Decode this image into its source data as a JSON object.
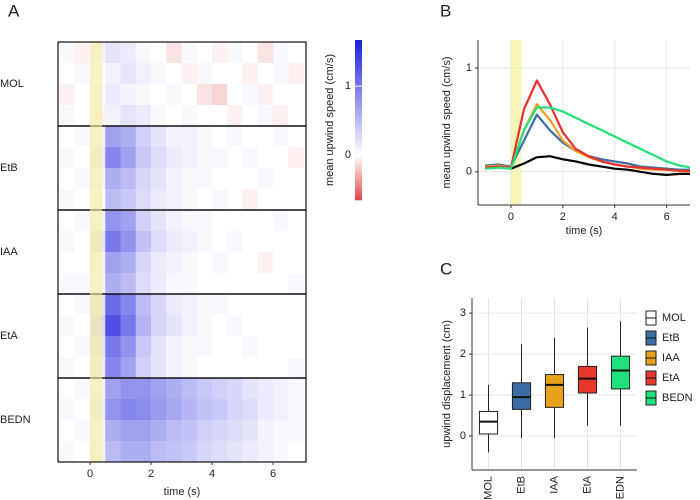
{
  "chart_data": [
    {
      "type": "heatmap",
      "label": "A",
      "xlabel": "time (s)",
      "colorbar_label": "mean upwind speed (cm/s)",
      "xlim": [
        -1.05,
        7.08
      ],
      "xticks": [
        0,
        2,
        4,
        6
      ],
      "highlight": [
        0,
        0.4
      ],
      "clim": [
        -0.65,
        1.67
      ],
      "cticks": [
        0,
        1
      ],
      "xbins": [
        -1,
        -0.5,
        0,
        0.5,
        1,
        1.5,
        2,
        2.5,
        3,
        3.5,
        4,
        4.5,
        5,
        5.5,
        6,
        6.5,
        7
      ],
      "groups": [
        {
          "name": "MOL",
          "rows": [
            [
              0.05,
              -0.05,
              0.1,
              0.2,
              0.15,
              0.05,
              0,
              -0.1,
              0.05,
              0,
              -0.05,
              0.05,
              0,
              -0.1,
              0.05,
              0
            ],
            [
              0,
              0.05,
              0,
              0.1,
              0.2,
              0.1,
              0.05,
              0,
              -0.05,
              0.05,
              0,
              0,
              -0.05,
              0,
              0.05,
              -0.05
            ],
            [
              -0.05,
              0,
              0.05,
              0.15,
              0.1,
              0.05,
              0,
              0.05,
              0,
              -0.1,
              -0.15,
              0,
              0.05,
              -0.05,
              0,
              0
            ],
            [
              0.05,
              0,
              -0.05,
              0.1,
              0.2,
              0.15,
              0.05,
              0,
              0.05,
              0,
              0,
              -0.05,
              0,
              0.05,
              -0.05,
              0
            ]
          ]
        },
        {
          "name": "EtB",
          "rows": [
            [
              0,
              0.05,
              0.1,
              0.7,
              0.6,
              0.35,
              0.2,
              0.1,
              0.1,
              0.05,
              0,
              0.05,
              0,
              0,
              0.05,
              0
            ],
            [
              0.05,
              0,
              0.15,
              0.9,
              0.7,
              0.4,
              0.25,
              0.15,
              0.1,
              0.05,
              0.05,
              0,
              0.05,
              0,
              0,
              -0.05
            ],
            [
              0,
              0.05,
              0.1,
              0.6,
              0.5,
              0.3,
              0.2,
              0.1,
              0.05,
              0.05,
              0,
              0,
              0,
              0.05,
              0,
              0
            ],
            [
              0.05,
              0,
              0.05,
              0.5,
              0.4,
              0.25,
              0.15,
              0.1,
              0.05,
              0,
              0.05,
              0,
              -0.05,
              0,
              0,
              0
            ]
          ]
        },
        {
          "name": "IAA",
          "rows": [
            [
              0,
              0.05,
              0.1,
              0.8,
              0.7,
              0.35,
              0.2,
              0.1,
              0.05,
              0.05,
              0,
              0,
              0,
              0,
              0.05,
              0
            ],
            [
              0.05,
              0,
              0.2,
              1.0,
              0.8,
              0.45,
              0.25,
              0.15,
              0.1,
              0.05,
              0,
              0.05,
              0,
              0,
              0,
              0
            ],
            [
              0,
              0,
              0.1,
              0.7,
              0.6,
              0.3,
              0.15,
              0.1,
              0.05,
              0,
              0.05,
              0,
              0,
              -0.05,
              0,
              0
            ],
            [
              0.05,
              0.05,
              0.1,
              0.6,
              0.5,
              0.25,
              0.15,
              0.05,
              0.05,
              0,
              0,
              0,
              0,
              0,
              0,
              0.05
            ]
          ]
        },
        {
          "name": "EtA",
          "rows": [
            [
              0,
              0.05,
              0.2,
              1.1,
              0.9,
              0.5,
              0.3,
              0.15,
              0.1,
              0.05,
              0.05,
              0,
              0,
              0,
              0,
              0
            ],
            [
              0.05,
              0,
              0.3,
              1.3,
              1.0,
              0.55,
              0.3,
              0.2,
              0.1,
              0.05,
              0,
              0.05,
              0,
              0,
              0,
              0
            ],
            [
              0,
              0.05,
              0.2,
              1.0,
              0.8,
              0.4,
              0.2,
              0.1,
              0.05,
              0.05,
              0,
              0,
              0.05,
              0,
              0,
              0
            ],
            [
              0.05,
              0,
              0.15,
              0.9,
              0.7,
              0.35,
              0.2,
              0.1,
              0.05,
              0,
              0,
              0,
              0,
              0,
              0,
              0.05
            ]
          ]
        },
        {
          "name": "BEDN",
          "rows": [
            [
              0,
              0.05,
              0.1,
              0.7,
              0.8,
              0.8,
              0.7,
              0.6,
              0.5,
              0.4,
              0.35,
              0.3,
              0.2,
              0.15,
              0.1,
              0.05
            ],
            [
              0.05,
              0,
              0.15,
              0.8,
              0.9,
              0.85,
              0.75,
              0.65,
              0.55,
              0.45,
              0.4,
              0.3,
              0.25,
              0.15,
              0.1,
              0.05
            ],
            [
              0,
              0.05,
              0.1,
              0.6,
              0.7,
              0.7,
              0.6,
              0.5,
              0.45,
              0.35,
              0.3,
              0.25,
              0.2,
              0.1,
              0.05,
              0.05
            ],
            [
              0.05,
              0,
              0.1,
              0.5,
              0.6,
              0.6,
              0.5,
              0.45,
              0.4,
              0.3,
              0.25,
              0.2,
              0.15,
              0.1,
              0.05,
              0
            ]
          ]
        }
      ]
    },
    {
      "type": "line",
      "label": "B",
      "xlabel": "time (s)",
      "ylabel": "mean upwind speed (cm/s)",
      "xlim": [
        -1.27,
        6.9
      ],
      "ylim": [
        -0.32,
        1.27
      ],
      "xticks": [
        0,
        2,
        4,
        6
      ],
      "yticks": [
        0,
        1
      ],
      "grid": true,
      "highlight": [
        0,
        0.4
      ],
      "x": [
        -1,
        -0.5,
        0,
        0.5,
        1,
        1.5,
        2,
        2.5,
        3,
        3.5,
        4,
        4.5,
        5,
        5.5,
        6,
        6.5,
        7
      ],
      "series": [
        {
          "color": "#000000",
          "values": [
            0.05,
            0.05,
            0.03,
            0.08,
            0.14,
            0.15,
            0.12,
            0.1,
            0.07,
            0.05,
            0.03,
            0.02,
            0.0,
            -0.02,
            -0.03,
            -0.02,
            -0.02
          ]
        },
        {
          "color": "#3a6ea5",
          "values": [
            0.06,
            0.07,
            0.05,
            0.3,
            0.55,
            0.4,
            0.28,
            0.2,
            0.15,
            0.12,
            0.1,
            0.08,
            0.05,
            0.04,
            0.03,
            0.02,
            0.02
          ]
        },
        {
          "color": "#f0a020",
          "values": [
            0.05,
            0.06,
            0.04,
            0.4,
            0.65,
            0.5,
            0.3,
            0.2,
            0.14,
            0.1,
            0.07,
            0.05,
            0.03,
            0.02,
            0.02,
            0.01,
            0.0
          ]
        },
        {
          "color": "#e8302a",
          "values": [
            0.04,
            0.05,
            0.04,
            0.6,
            0.88,
            0.65,
            0.38,
            0.22,
            0.15,
            0.1,
            0.07,
            0.05,
            0.04,
            0.03,
            0.02,
            0.01,
            0.01
          ]
        },
        {
          "color": "#22e07a",
          "values": [
            0.03,
            0.04,
            0.03,
            0.4,
            0.62,
            0.62,
            0.58,
            0.52,
            0.46,
            0.4,
            0.34,
            0.28,
            0.22,
            0.16,
            0.1,
            0.06,
            0.04
          ]
        }
      ]
    },
    {
      "type": "box",
      "label": "C",
      "ylabel": "upwind displacement (cm)",
      "ylim": [
        -0.83,
        3.37
      ],
      "yticks": [
        0,
        1,
        2,
        3
      ],
      "grid": true,
      "boxes": [
        {
          "name": "MOL",
          "color": "#ffffff",
          "min": -0.4,
          "q1": 0.05,
          "median": 0.35,
          "q3": 0.6,
          "max": 1.25
        },
        {
          "name": "EtB",
          "color": "#3a6ea5",
          "min": -0.05,
          "q1": 0.65,
          "median": 0.95,
          "q3": 1.3,
          "max": 2.25
        },
        {
          "name": "IAA",
          "color": "#e5a21a",
          "min": -0.05,
          "q1": 0.7,
          "median": 1.25,
          "q3": 1.5,
          "max": 2.4
        },
        {
          "name": "EtA",
          "color": "#e8382e",
          "min": 0.25,
          "q1": 1.05,
          "median": 1.4,
          "q3": 1.7,
          "max": 2.65
        },
        {
          "name": "BEDN",
          "color": "#1fe07a",
          "min": 0.25,
          "q1": 1.15,
          "median": 1.6,
          "q3": 1.95,
          "max": 2.8
        }
      ]
    }
  ]
}
